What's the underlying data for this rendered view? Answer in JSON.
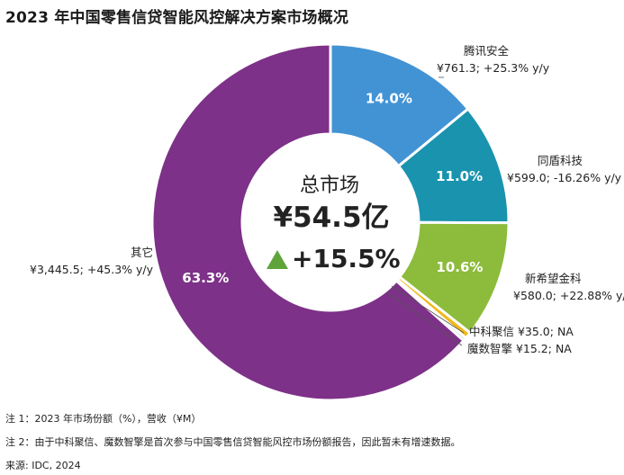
{
  "title": "2023 年中国零售信贷智能风控解决方案市场概况",
  "center": {
    "label": "总市场",
    "total": "¥54.5亿",
    "growth": "+15.5%"
  },
  "colors": {
    "tencent": "#4293d4",
    "tongdun": "#1a93ae",
    "xinxiwang": "#8dbb3b",
    "zhongke": "#f2b818",
    "moshu": "#c8c8c8",
    "others": "#7d3188",
    "growth_arrow": "#5ea43b"
  },
  "chart_data": {
    "type": "pie",
    "title": "2023 年中国零售信贷智能风控解决方案市场概况",
    "unit": "¥M",
    "slices": [
      {
        "name": "腾讯安全",
        "percent": 14.0,
        "pct_label": "14.0%",
        "value": 761.3,
        "value_label": "¥761.3; +25.3% y/y",
        "color": "tencent"
      },
      {
        "name": "同盾科技",
        "percent": 11.0,
        "pct_label": "11.0%",
        "value": 599.0,
        "value_label": "¥599.0; -16.26% y/y",
        "color": "tongdun"
      },
      {
        "name": "新希望金科",
        "percent": 10.6,
        "pct_label": "10.6%",
        "value": 580.0,
        "value_label": "¥580.0; +22.88% y/y",
        "color": "xinxiwang"
      },
      {
        "name": "中科聚信",
        "percent": 0.6,
        "pct_label": "",
        "value": 35.0,
        "value_label": "中科聚信 ¥35.0; NA",
        "color": "zhongke"
      },
      {
        "name": "魔数智擎",
        "percent": 0.3,
        "pct_label": "",
        "value": 15.2,
        "value_label": "魔数智擎 ¥15.2; NA",
        "color": "moshu"
      },
      {
        "name": "其它",
        "percent": 63.3,
        "pct_label": "63.3%",
        "value": 3445.5,
        "value_label": "¥3,445.5; +45.3% y/y",
        "color": "others"
      }
    ]
  },
  "notes": [
    "注 1：2023 年市场份额（%），营收（¥M）",
    "注 2：由于中科聚信、魔数智擎是首次参与中国零售信贷智能风控市场份额报告，因此暂未有增速数据。",
    "来源: IDC, 2024"
  ]
}
